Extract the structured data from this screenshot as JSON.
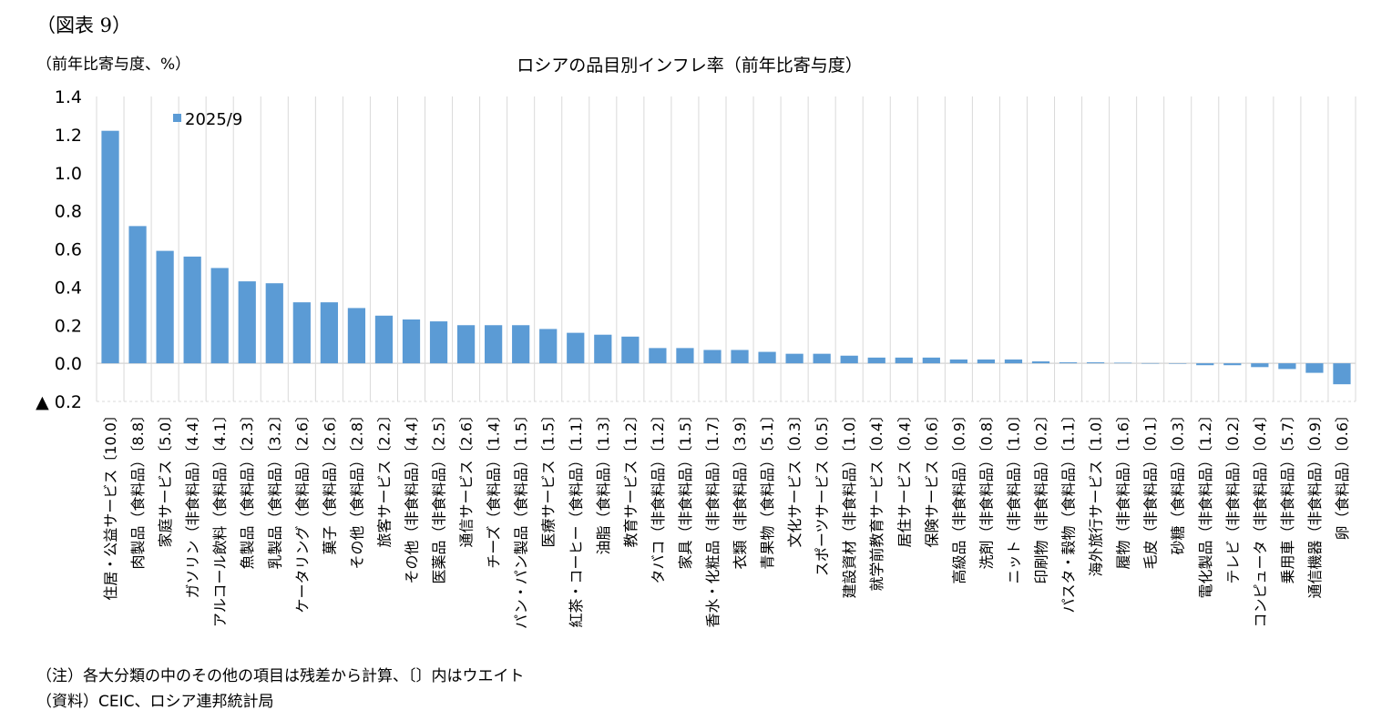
{
  "figure_label": "（図表 9）",
  "notes": [
    "（注）各大分類の中のその他の項目は残差から計算、〔〕内はウエイト",
    "（資料）CEIC、ロシア連邦統計局"
  ],
  "chart_data": {
    "type": "bar",
    "title": "ロシアの品目別インフレ率（前年比寄与度）",
    "ylabel": "（前年比寄与度、%）",
    "ylim": [
      -0.2,
      1.4
    ],
    "yticks": [
      1.4,
      1.2,
      1.0,
      0.8,
      0.6,
      0.4,
      0.2,
      0.0,
      -0.2
    ],
    "ytick_labels": [
      "1.4",
      "1.2",
      "1.0",
      "0.8",
      "0.6",
      "0.4",
      "0.2",
      "0.0",
      "▲ 0.2"
    ],
    "grid": "vertical",
    "legend_position": "top-left",
    "bar_color": "#5B9BD5",
    "series": [
      {
        "name": "2025/9",
        "values": [
          1.22,
          0.72,
          0.59,
          0.56,
          0.5,
          0.43,
          0.42,
          0.32,
          0.32,
          0.29,
          0.25,
          0.23,
          0.22,
          0.2,
          0.2,
          0.2,
          0.18,
          0.16,
          0.15,
          0.14,
          0.08,
          0.08,
          0.07,
          0.07,
          0.06,
          0.05,
          0.05,
          0.04,
          0.03,
          0.03,
          0.03,
          0.02,
          0.02,
          0.02,
          0.01,
          0.005,
          0.005,
          0.003,
          0.001,
          0.0,
          -0.01,
          -0.01,
          -0.02,
          -0.03,
          -0.05,
          -0.11
        ]
      }
    ],
    "categories": [
      "住居・公益サービス〔10.0〕",
      "肉製品（食料品）〔8.8〕",
      "家庭サービス〔5.0〕",
      "ガソリン（非食料品）〔4.4〕",
      "アルコール飲料（食料品）〔4.1〕",
      "魚製品（食料品）〔2.3〕",
      "乳製品（食料品）〔3.2〕",
      "ケータリング（食料品）〔2.6〕",
      "菓子（食料品）〔2.6〕",
      "その他（食料品）〔2.8〕",
      "旅客サービス〔2.2〕",
      "その他（非食料品）〔4.4〕",
      "医薬品（非食料品）〔2.5〕",
      "通信サービス〔2.6〕",
      "チーズ（食料品）〔1.4〕",
      "パン・パン製品（食料品）〔1.5〕",
      "医療サービス〔1.5〕",
      "紅茶・コーヒー（食料品）〔1.1〕",
      "油脂（食料品）〔1.3〕",
      "教育サービス〔1.2〕",
      "タバコ（非食料品）〔1.2〕",
      "家具（非食料品）〔1.5〕",
      "香水・化粧品（非食料品）〔1.7〕",
      "衣類（非食料品）〔3.9〕",
      "青果物（食料品）〔5.1〕",
      "文化サービス〔0.3〕",
      "スポーツサービス〔0.5〕",
      "建設資材（非食料品）〔1.0〕",
      "就学前教育サービス〔0.4〕",
      "居住サービス〔0.4〕",
      "保険サービス〔0.6〕",
      "高級品（非食料品）〔0.9〕",
      "洗剤（非食料品）〔0.8〕",
      "ニット（非食料品）〔1.0〕",
      "印刷物（非食料品）〔0.2〕",
      "パスタ・穀物（食料品）〔1.1〕",
      "海外旅行サービス〔1.0〕",
      "履物（非食料品）〔1.6〕",
      "毛皮（非食料品）〔0.1〕",
      "砂糖（食料品）〔0.3〕",
      "電化製品（非食料品）〔1.2〕",
      "テレビ（非食料品）〔0.2〕",
      "コンピュータ（非食料品）〔0.4〕",
      "乗用車（非食料品）〔5.7〕",
      "通信機器（非食料品）〔0.9〕",
      "卵（食料品）〔0.6〕"
    ]
  }
}
